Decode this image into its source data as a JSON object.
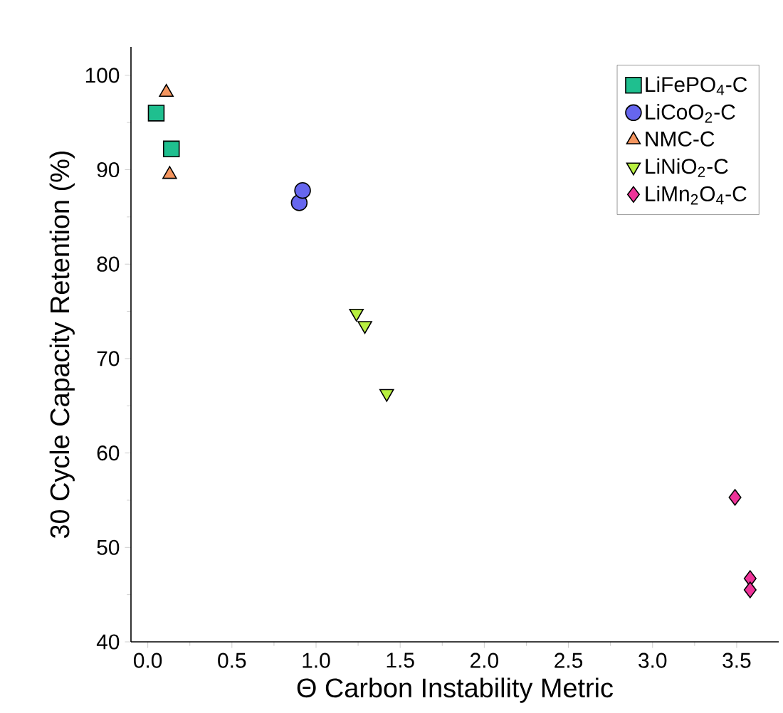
{
  "chart_data": {
    "type": "scatter",
    "xlabel": "Θ Carbon Instability Metric",
    "ylabel": "30 Cycle Capacity Retention (%)",
    "xlim": [
      -0.1,
      3.75
    ],
    "ylim": [
      40,
      103
    ],
    "xticks": [
      {
        "value": 0,
        "label": "0.0"
      },
      0.5,
      {
        "value": 1,
        "label": "1.0"
      },
      1.5,
      {
        "value": 2,
        "label": "2.0"
      },
      2.5,
      {
        "value": 3,
        "label": "3.0"
      },
      3.5
    ],
    "yticks": [
      40,
      50,
      60,
      70,
      80,
      90,
      100
    ],
    "legend": "top right",
    "series": [
      {
        "name": "LiFePO$_{4}$-C",
        "color": "#1fbf8f",
        "marker": "square",
        "x": [
          0.05,
          0.14
        ],
        "values": [
          96.0,
          92.2
        ]
      },
      {
        "name": "LiCoO$_{2}$-C",
        "color": "#6666ee",
        "marker": "circle",
        "x": [
          0.9,
          0.92
        ],
        "values": [
          86.5,
          87.8
        ]
      },
      {
        "name": "NMC-C",
        "color": "#f4955f",
        "marker": "triangle",
        "x": [
          0.11,
          0.13
        ],
        "values": [
          98.2,
          89.5
        ]
      },
      {
        "name": "LiNiO$_{2}$-C",
        "color": "#b8f040",
        "marker": "triangle-down",
        "x": [
          1.24,
          1.29,
          1.42
        ],
        "values": [
          74.8,
          73.5,
          66.3
        ]
      },
      {
        "name": "LiMn$_{2}$O$_{4}$-C",
        "color": "#ee3399",
        "marker": "diamond",
        "x": [
          3.49,
          3.58,
          3.58
        ],
        "values": [
          55.3,
          46.7,
          45.5
        ]
      }
    ]
  }
}
